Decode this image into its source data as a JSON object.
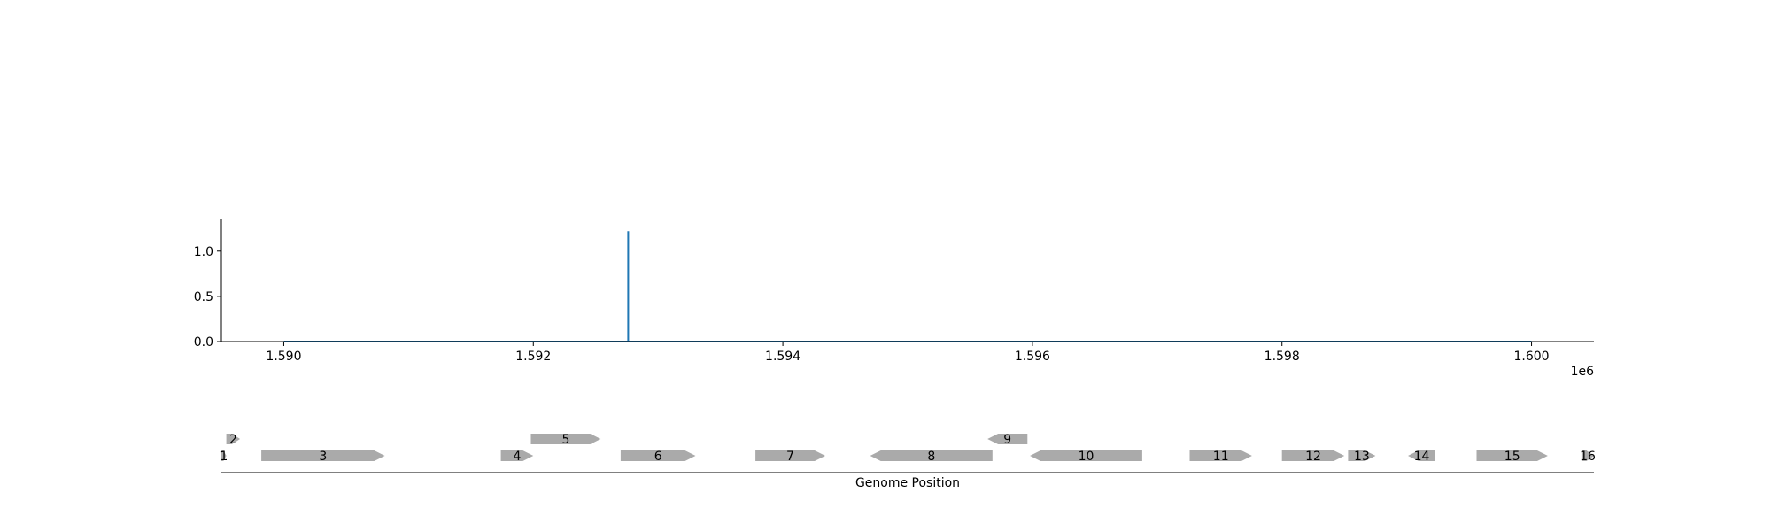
{
  "chart_data": [
    {
      "type": "line",
      "xlabel": "",
      "ylabel": "",
      "xlim": [
        1589500,
        1600500
      ],
      "ylim": [
        0,
        1.35
      ],
      "x_ticks": [
        1590000,
        1592000,
        1594000,
        1596000,
        1598000,
        1600000
      ],
      "x_tick_labels": [
        "1.590",
        "1.592",
        "1.594",
        "1.596",
        "1.598",
        "1.600"
      ],
      "x_offset_label": "1e6",
      "y_ticks": [
        0.0,
        0.5,
        1.0
      ],
      "y_tick_labels": [
        "0.0",
        "0.5",
        "1.0"
      ],
      "line_color": "#1f77b4",
      "grid": false,
      "series": [
        {
          "x": [
            1590000,
            1592760,
            1592760,
            1592760,
            1600000
          ],
          "y": [
            0,
            0,
            1.22,
            0,
            0
          ]
        }
      ]
    },
    {
      "type": "gene-track",
      "xlabel": "Genome Position",
      "xlim": [
        1589500,
        1600500
      ],
      "feature_color": "#aaaaaa",
      "features": [
        {
          "label": "1",
          "start": 1589500,
          "end": 1589540,
          "strand": 1,
          "row": 0
        },
        {
          "label": "2",
          "start": 1589540,
          "end": 1589650,
          "strand": 1,
          "row": 1
        },
        {
          "label": "3",
          "start": 1589820,
          "end": 1590810,
          "strand": 1,
          "row": 0
        },
        {
          "label": "4",
          "start": 1591740,
          "end": 1592000,
          "strand": 1,
          "row": 0
        },
        {
          "label": "5",
          "start": 1591980,
          "end": 1592540,
          "strand": 1,
          "row": 1
        },
        {
          "label": "6",
          "start": 1592700,
          "end": 1593300,
          "strand": 1,
          "row": 0
        },
        {
          "label": "7",
          "start": 1593780,
          "end": 1594340,
          "strand": 1,
          "row": 0
        },
        {
          "label": "8",
          "start": 1594700,
          "end": 1595680,
          "strand": -1,
          "row": 0
        },
        {
          "label": "9",
          "start": 1595640,
          "end": 1595960,
          "strand": -1,
          "row": 1
        },
        {
          "label": "10",
          "start": 1595980,
          "end": 1596880,
          "strand": -1,
          "row": 0
        },
        {
          "label": "11",
          "start": 1597260,
          "end": 1597760,
          "strand": 1,
          "row": 0
        },
        {
          "label": "12",
          "start": 1598000,
          "end": 1598500,
          "strand": 1,
          "row": 0
        },
        {
          "label": "13",
          "start": 1598530,
          "end": 1598750,
          "strand": 1,
          "row": 0
        },
        {
          "label": "14",
          "start": 1599010,
          "end": 1599230,
          "strand": -1,
          "row": 0
        },
        {
          "label": "15",
          "start": 1599560,
          "end": 1600130,
          "strand": 1,
          "row": 0
        },
        {
          "label": "16",
          "start": 1600400,
          "end": 1600500,
          "strand": 1,
          "row": 0
        }
      ]
    }
  ]
}
